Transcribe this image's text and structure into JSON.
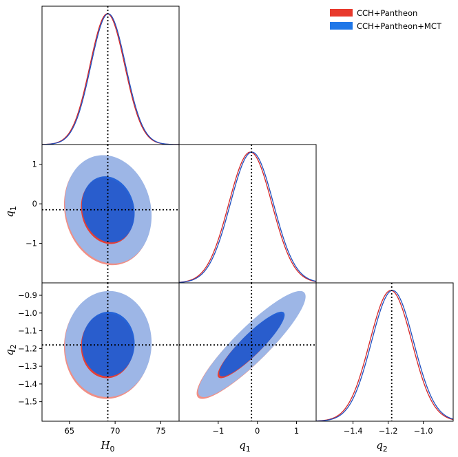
{
  "chart_data": {
    "type": "corner",
    "parameters": [
      {
        "name": "H0",
        "label": "H",
        "subscript": "0",
        "range": [
          62,
          77
        ],
        "ticks": [
          65,
          70,
          75
        ],
        "tick_labels": [
          "65",
          "70",
          "75"
        ],
        "marker": 69.2
      },
      {
        "name": "q1",
        "label": "q",
        "subscript": "1",
        "range": [
          -2.0,
          1.5
        ],
        "ticks": [
          -1,
          0,
          1
        ],
        "tick_labels": [
          "−1",
          "0",
          "1"
        ],
        "marker": -0.15
      },
      {
        "name": "q2",
        "label": "q",
        "subscript": "2",
        "range": [
          -1.61,
          -0.83
        ],
        "ticks": [
          -1.5,
          -1.4,
          -1.3,
          -1.2,
          -1.1,
          -1.0,
          -0.9
        ],
        "tick_labels": [
          "−1.5",
          "−1.4",
          "−1.3",
          "−1.2",
          "−1.1",
          "−1.0",
          "−0.9"
        ],
        "x_ticks": [
          -1.4,
          -1.2,
          -1.0
        ],
        "x_tick_labels": [
          "−1.4",
          "−1.2",
          "−1.0"
        ],
        "marker": -1.18
      }
    ],
    "series": [
      {
        "name": "CCH+Pantheon",
        "color": "#e8392c",
        "line_color": "#d62728",
        "mean": [
          69.15,
          -0.18,
          -1.185
        ],
        "sd": [
          1.9,
          0.55,
          0.12
        ]
      },
      {
        "name": "CCH+Pantheon+MCT",
        "color": "#1f77e8",
        "line_color": "#1f4fbf",
        "mean": [
          69.25,
          -0.14,
          -1.175
        ],
        "sd": [
          1.9,
          0.55,
          0.12
        ]
      }
    ],
    "legend": [
      "CCH+Pantheon",
      "CCH+Pantheon+MCT"
    ],
    "legend_location": "top-right"
  }
}
